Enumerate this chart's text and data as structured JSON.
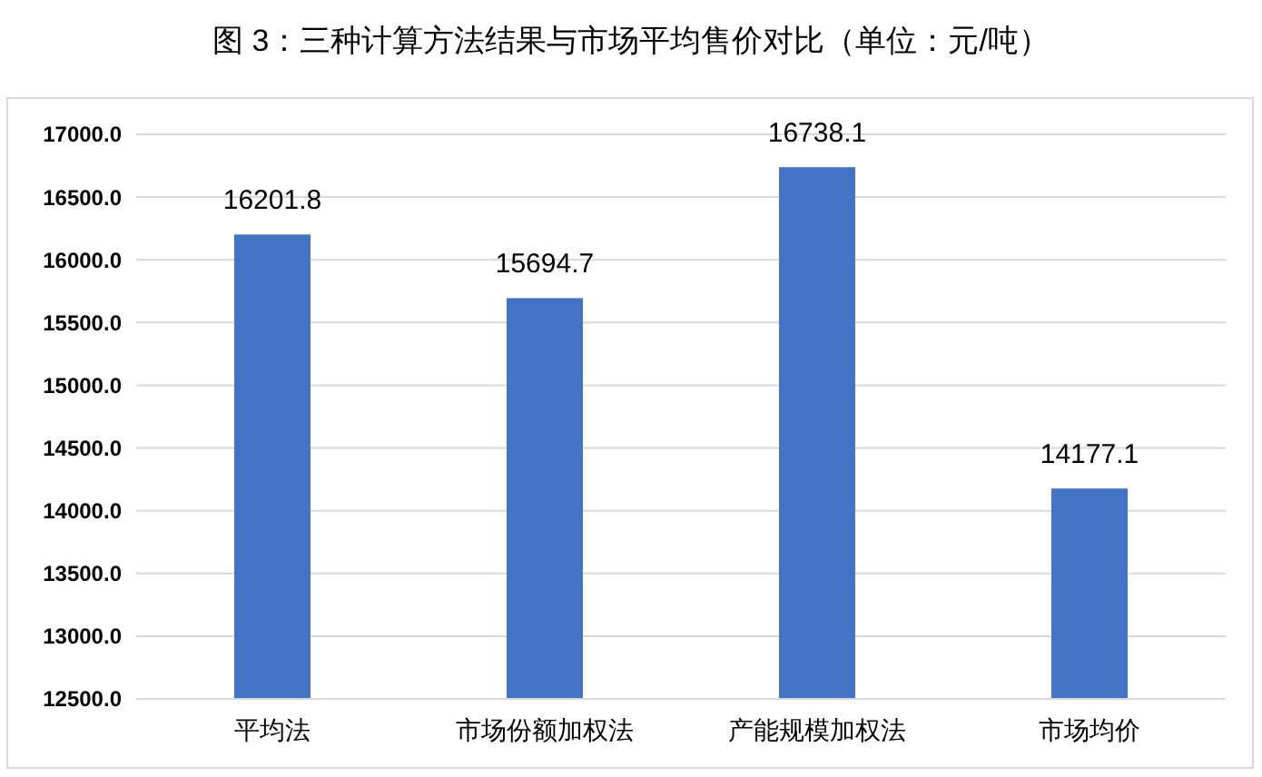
{
  "chart_data": {
    "type": "bar",
    "title": "图 3：三种计算方法结果与市场平均售价对比（单位：元/吨）",
    "categories": [
      "平均法",
      "市场份额加权法",
      "产能规模加权法",
      "市场均价"
    ],
    "values": [
      16201.8,
      15694.7,
      16738.1,
      14177.1
    ],
    "color": "#4472c4",
    "ylim": [
      12500,
      17000
    ],
    "yticks": [
      {
        "value": 12500,
        "label": "12500.0"
      },
      {
        "value": 13000,
        "label": "13000.0"
      },
      {
        "value": 13500,
        "label": "13500.0"
      },
      {
        "value": 14000,
        "label": "14000.0"
      },
      {
        "value": 14500,
        "label": "14500.0"
      },
      {
        "value": 15000,
        "label": "15000.0"
      },
      {
        "value": 15500,
        "label": "15500.0"
      },
      {
        "value": 16000,
        "label": "16000.0"
      },
      {
        "value": 16500,
        "label": "16500.0"
      },
      {
        "value": 17000,
        "label": "17000.0"
      }
    ],
    "grid": "y",
    "data_labels": true
  }
}
